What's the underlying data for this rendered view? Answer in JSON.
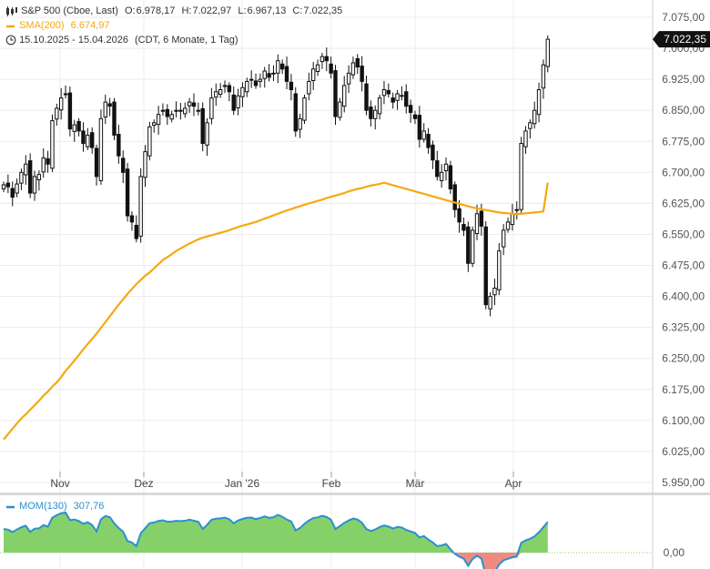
{
  "header": {
    "title": "S&P 500 (Cboe, Last)",
    "ohlc": [
      {
        "label": "O:",
        "value": "6.978,17"
      },
      {
        "label": "H:",
        "value": "7.022,97"
      },
      {
        "label": "L:",
        "value": "6.967,13"
      },
      {
        "label": "C:",
        "value": "7.022,35"
      }
    ],
    "sma_label": "SMA(200)",
    "sma_value": "6.674,97",
    "range": "15.10.2025 - 15.04.2026",
    "range_meta": "(CDT, 6 Monate, 1 Tag)",
    "mom_label": "MOM(130)",
    "mom_value": "307,76"
  },
  "colors": {
    "candle": "#111111",
    "sma": "#f5a90f",
    "mom_line": "#2b8fd1",
    "mom_pos": "#86d06a",
    "mom_neg": "#f08a80",
    "last_price_bg": "#111111"
  },
  "chart_data": [
    {
      "type": "candlestick",
      "title": "S&P 500 (Cboe, Last)",
      "ylim": [
        5925,
        7100
      ],
      "y_ticks": [
        "7.075,00",
        "7.000,00",
        "6.925,00",
        "6.850,00",
        "6.775,00",
        "6.700,00",
        "6.625,00",
        "6.550,00",
        "6.475,00",
        "6.400,00",
        "6.325,00",
        "6.250,00",
        "6.175,00",
        "6.100,00",
        "6.025,00",
        "5.950,00"
      ],
      "x_ticks": [
        "Nov",
        "Dez",
        "Jan '26",
        "Feb",
        "Mär",
        "Apr"
      ],
      "last_price": "7.022,35",
      "close": [
        6670,
        6665,
        6640,
        6672,
        6700,
        6720,
        6650,
        6690,
        6695,
        6735,
        6720,
        6825,
        6855,
        6880,
        6890,
        6805,
        6815,
        6800,
        6770,
        6790,
        6760,
        6690,
        6830,
        6870,
        6860,
        6790,
        6740,
        6700,
        6595,
        6580,
        6540,
        6690,
        6750,
        6810,
        6820,
        6840,
        6850,
        6835,
        6840,
        6850,
        6850,
        6855,
        6870,
        6860,
        6850,
        6770,
        6820,
        6880,
        6895,
        6900,
        6910,
        6895,
        6850,
        6885,
        6905,
        6920,
        6925,
        6910,
        6925,
        6945,
        6930,
        6940,
        6970,
        6950,
        6920,
        6900,
        6800,
        6830,
        6880,
        6920,
        6950,
        6960,
        6980,
        6970,
        6940,
        6835,
        6870,
        6910,
        6940,
        6965,
        6955,
        6920,
        6850,
        6830,
        6850,
        6880,
        6900,
        6890,
        6870,
        6890,
        6885,
        6860,
        6845,
        6830,
        6780,
        6800,
        6760,
        6730,
        6690,
        6700,
        6720,
        6660,
        6610,
        6580,
        6560,
        6480,
        6560,
        6600,
        6570,
        6380,
        6400,
        6420,
        6510,
        6560,
        6580,
        6600,
        6610,
        6770,
        6800,
        6820,
        6850,
        6900,
        6960,
        7022
      ],
      "sma": [
        6054,
        6067,
        6080,
        6093,
        6105,
        6115,
        6126,
        6137,
        6148,
        6160,
        6170,
        6182,
        6192,
        6205,
        6220,
        6232,
        6245,
        6258,
        6272,
        6285,
        6297,
        6310,
        6324,
        6338,
        6352,
        6366,
        6380,
        6393,
        6406,
        6418,
        6430,
        6440,
        6450,
        6458,
        6468,
        6478,
        6488,
        6495,
        6502,
        6510,
        6516,
        6522,
        6528,
        6533,
        6538,
        6542,
        6545,
        6548,
        6551,
        6554,
        6557,
        6560,
        6564,
        6568,
        6571,
        6574,
        6577,
        6580,
        6584,
        6588,
        6592,
        6596,
        6600,
        6604,
        6608,
        6611,
        6615,
        6618,
        6622,
        6625,
        6628,
        6631,
        6634,
        6638,
        6641,
        6644,
        6647,
        6650,
        6654,
        6657,
        6660,
        6662,
        6665,
        6668,
        6670,
        6672,
        6675,
        6672,
        6669,
        6666,
        6663,
        6660,
        6657,
        6654,
        6651,
        6648,
        6645,
        6642,
        6639,
        6636,
        6633,
        6630,
        6627,
        6624,
        6621,
        6618,
        6615,
        6613,
        6611,
        6609,
        6607,
        6605,
        6603,
        6602,
        6601,
        6600,
        6599,
        6600,
        6601,
        6602,
        6603,
        6604,
        6606,
        6675
      ]
    },
    {
      "type": "area",
      "title": "MOM(130)",
      "y_ticks": [
        "0,00"
      ],
      "last_value": "307,76"
    }
  ]
}
